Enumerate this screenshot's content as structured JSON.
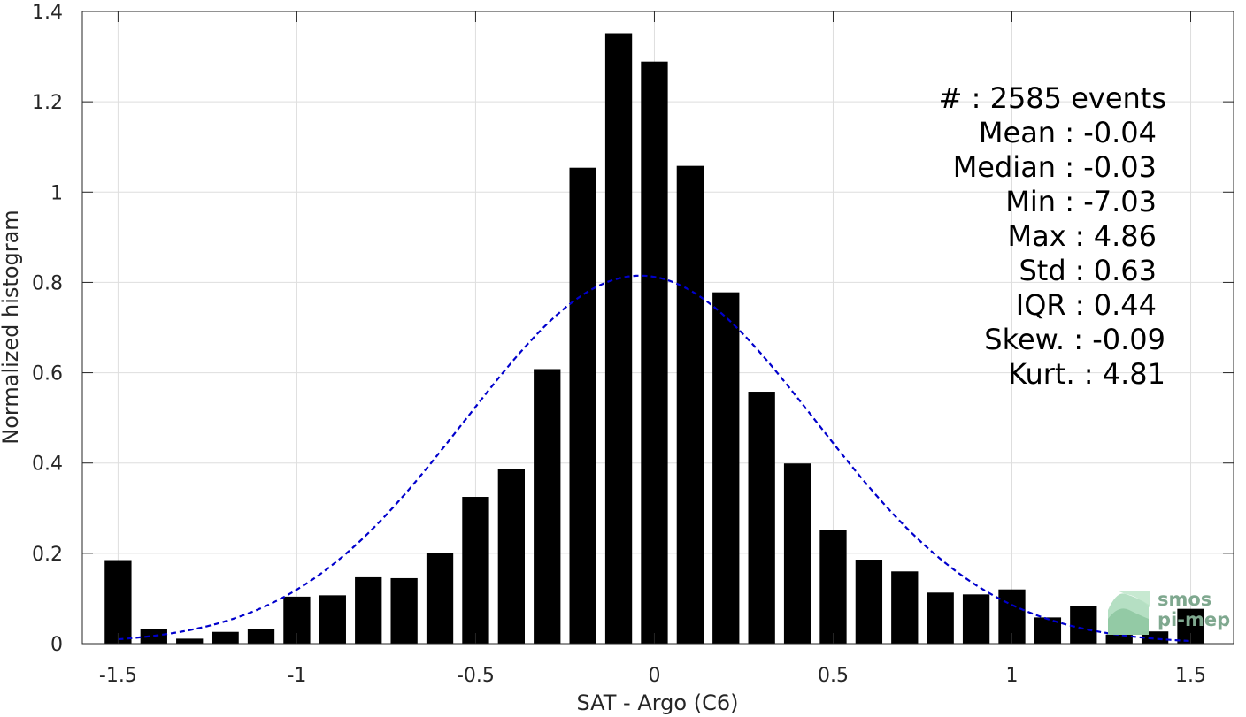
{
  "chart_data": {
    "type": "bar",
    "xlabel": "SAT - Argo (C6)",
    "ylabel": "Normalized histogram",
    "xlim": [
      -1.6,
      1.62
    ],
    "ylim": [
      0,
      1.4
    ],
    "grid": true,
    "xticks": [
      -1.5,
      -1,
      -0.5,
      0,
      0.5,
      1,
      1.5
    ],
    "xtick_labels": [
      "-1.5",
      "-1",
      "-0.5",
      "0",
      "0.5",
      "1",
      "1.5"
    ],
    "yticks": [
      0,
      0.2,
      0.4,
      0.6,
      0.8,
      1,
      1.2,
      1.4
    ],
    "ytick_labels": [
      "0",
      "0.2",
      "0.4",
      "0.6",
      "0.8",
      "1",
      "1.2",
      "1.4"
    ],
    "bar_width": 0.075,
    "bar_color": "#000000",
    "bars": {
      "x": [
        -1.5,
        -1.4,
        -1.3,
        -1.2,
        -1.1,
        -1.0,
        -0.9,
        -0.8,
        -0.7,
        -0.6,
        -0.5,
        -0.4,
        -0.3,
        -0.2,
        -0.1,
        0.0,
        0.1,
        0.2,
        0.3,
        0.4,
        0.5,
        0.6,
        0.7,
        0.8,
        0.9,
        1.0,
        1.1,
        1.2,
        1.3,
        1.4,
        1.5
      ],
      "values": [
        0.185,
        0.033,
        0.011,
        0.026,
        0.033,
        0.104,
        0.107,
        0.147,
        0.145,
        0.2,
        0.325,
        0.387,
        0.608,
        1.054,
        1.352,
        1.289,
        1.058,
        0.778,
        0.558,
        0.399,
        0.251,
        0.186,
        0.16,
        0.113,
        0.109,
        0.12,
        0.058,
        0.084,
        0.02,
        0.027,
        0.077
      ]
    },
    "fit": {
      "type": "normal-curve",
      "style": "dashed",
      "color": "#0000cc",
      "mean": -0.04,
      "std": 0.49,
      "peak": 0.815,
      "x_range": [
        -1.5,
        1.5
      ]
    },
    "annotations": [
      {
        "label": "#  ",
        "value": ": 2585 events"
      },
      {
        "label": "Mean ",
        "value": ": -0.04"
      },
      {
        "label": "Median ",
        "value": ": -0.03"
      },
      {
        "label": "Min ",
        "value": ": -7.03"
      },
      {
        "label": "Max ",
        "value": ": 4.86"
      },
      {
        "label": "Std ",
        "value": ": 0.63"
      },
      {
        "label": "IQR ",
        "value": ": 0.44"
      },
      {
        "label": "Skew. ",
        "value": ": -0.09"
      },
      {
        "label": "Kurt. ",
        "value": ": 4.81"
      }
    ]
  },
  "logo": {
    "line1": "smos",
    "line2": "pi-mep",
    "color": "#7fa88f"
  }
}
